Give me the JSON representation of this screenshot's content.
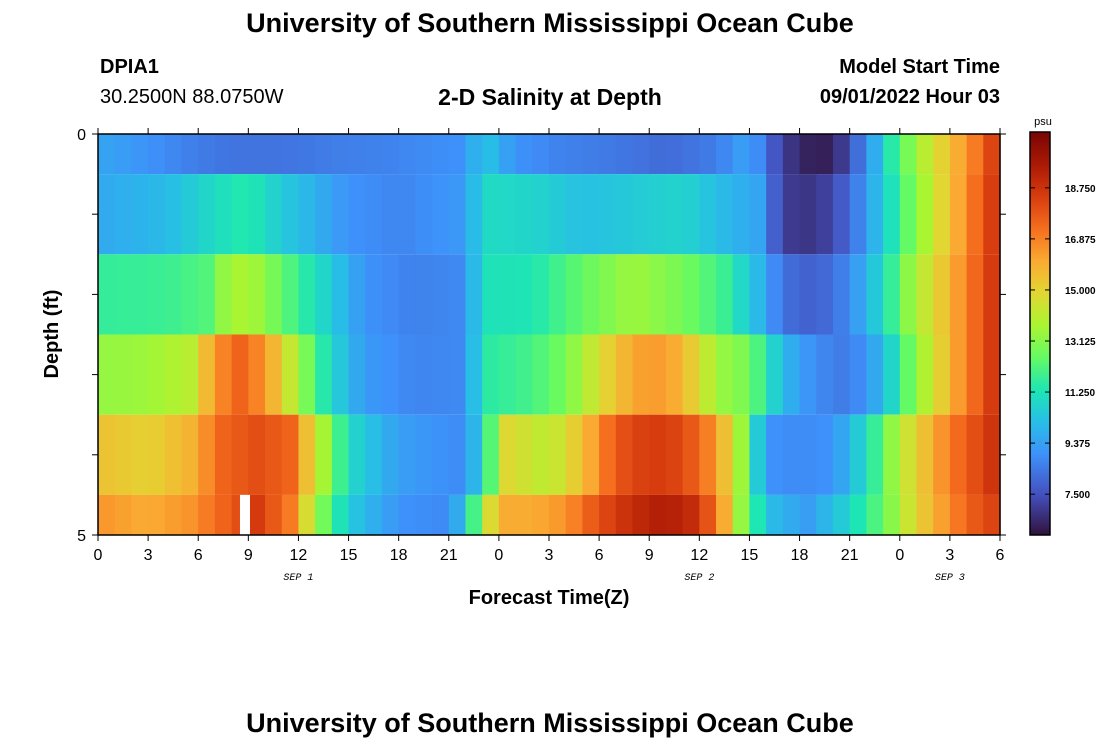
{
  "header": {
    "title": "University of Southern Mississippi Ocean Cube",
    "station": "DPIA1",
    "coords": "30.2500N  88.0750W",
    "subtitle": "2-D Salinity at Depth",
    "start_label": "Model Start Time",
    "start_value": "09/01/2022 Hour 03"
  },
  "footer": {
    "title": "University of Southern Mississippi Ocean Cube"
  },
  "chart_data": {
    "type": "heatmap",
    "title": "2-D Salinity at Depth",
    "xlabel": "Forecast Time(Z)",
    "ylabel": "Depth (ft)",
    "x_range_hours": [
      0,
      54
    ],
    "y_range": [
      0,
      5
    ],
    "y_tick_labels": [
      "0",
      "5"
    ],
    "x_tick_labels": [
      "0",
      "3",
      "6",
      "9",
      "12",
      "15",
      "18",
      "21",
      "0",
      "3",
      "6",
      "9",
      "12",
      "15",
      "18",
      "21",
      "0",
      "3",
      "6"
    ],
    "date_labels": [
      {
        "text": "SEP 1",
        "hour": 12
      },
      {
        "text": "SEP 2",
        "hour": 36
      },
      {
        "text": "SEP 3",
        "hour": 51
      }
    ],
    "colorbar": {
      "unit": "psu",
      "range": [
        6.0,
        20.8
      ],
      "tick_labels": [
        "7.500",
        "9.375",
        "11.250",
        "13.125",
        "15.000",
        "16.875",
        "18.750"
      ],
      "tick_values": [
        7.5,
        9.375,
        11.25,
        13.125,
        15.0,
        16.875,
        18.75
      ]
    },
    "layers": [
      {
        "depth_top": 0,
        "depth_bottom": 0.5,
        "hours": [
          0,
          3,
          6,
          8,
          11,
          14,
          18,
          22,
          23,
          25,
          28,
          31,
          34,
          37,
          39,
          41,
          42.5,
          44,
          46,
          47.5,
          49,
          51,
          53,
          54
        ],
        "values": [
          9.5,
          9.0,
          8.5,
          8.3,
          8.3,
          8.5,
          8.7,
          9.0,
          10.5,
          9.0,
          8.6,
          8.4,
          8.1,
          8.5,
          9.5,
          7.0,
          6.4,
          6.3,
          8.8,
          11.5,
          13.5,
          15.5,
          17.5,
          19.0
        ]
      },
      {
        "depth_top": 0.5,
        "depth_bottom": 1.5,
        "hours": [
          0,
          4,
          7,
          9,
          11,
          13,
          15,
          18,
          22,
          23,
          26,
          29,
          32,
          35,
          37.5,
          39.5,
          41,
          43,
          45,
          47,
          48.5,
          51,
          54
        ],
        "values": [
          9.6,
          10.0,
          11.0,
          11.5,
          10.5,
          9.8,
          9.0,
          8.7,
          9.2,
          11.0,
          10.8,
          10.2,
          10.5,
          10.8,
          10.0,
          9.5,
          7.0,
          6.8,
          8.0,
          10.5,
          12.5,
          15.5,
          19.0
        ]
      },
      {
        "depth_top": 1.5,
        "depth_bottom": 2.5,
        "hours": [
          0,
          4,
          6.5,
          8,
          9.5,
          12,
          14,
          16,
          19,
          22,
          23,
          26,
          29,
          32,
          35,
          37.5,
          39.5,
          41,
          43,
          45,
          47,
          48.5,
          51,
          54
        ],
        "values": [
          11.7,
          11.8,
          12.2,
          13.8,
          13.5,
          11.8,
          10.5,
          9.0,
          8.6,
          8.8,
          11.2,
          11.3,
          12.5,
          13.5,
          12.8,
          11.8,
          10.0,
          8.2,
          7.8,
          8.8,
          11.0,
          13.2,
          15.8,
          19.0
        ]
      },
      {
        "depth_top": 2.5,
        "depth_bottom": 3.5,
        "hours": [
          0,
          3,
          5.5,
          7,
          8.5,
          10,
          12,
          14,
          16,
          19,
          22,
          23,
          26,
          28,
          31,
          33,
          35,
          37,
          39,
          41,
          43,
          45,
          47,
          48.5,
          51,
          54
        ],
        "values": [
          13.3,
          13.5,
          14.0,
          16.5,
          17.5,
          16.5,
          13.5,
          10.8,
          9.2,
          8.7,
          8.8,
          11.5,
          12.0,
          12.8,
          15.5,
          16.5,
          15.8,
          13.5,
          12.8,
          10.0,
          8.8,
          8.4,
          10.0,
          12.5,
          15.8,
          19.0
        ]
      },
      {
        "depth_top": 3.5,
        "depth_bottom": 4.5,
        "hours": [
          0,
          3,
          5.5,
          7.5,
          9.5,
          11.5,
          13,
          15,
          18,
          22,
          23,
          24.5,
          27,
          29,
          31,
          33,
          35,
          37,
          38.5,
          40,
          42,
          44,
          46,
          48,
          51,
          54
        ],
        "values": [
          15.5,
          15.0,
          15.8,
          17.5,
          18.0,
          17.5,
          14.5,
          11.0,
          9.3,
          8.8,
          11.0,
          14.8,
          14.0,
          15.5,
          17.8,
          18.5,
          18.2,
          16.5,
          13.5,
          9.0,
          8.8,
          9.0,
          11.0,
          14.0,
          17.0,
          19.0
        ]
      },
      {
        "depth_top": 4.5,
        "depth_bottom": 5.0,
        "hours": [
          0,
          3,
          5.5,
          7.5,
          9.5,
          11.5,
          13,
          15,
          18,
          21,
          22,
          23,
          24,
          26,
          28,
          30,
          32,
          34,
          36,
          37.5,
          39,
          40.5,
          42.5,
          44.5,
          47,
          49,
          52,
          54
        ],
        "values": [
          16.5,
          16.0,
          16.5,
          17.5,
          18.5,
          17.0,
          13.5,
          10.5,
          9.0,
          8.8,
          10.5,
          13.5,
          16.0,
          16.0,
          16.5,
          18.0,
          19.0,
          19.5,
          18.8,
          16.0,
          12.0,
          10.0,
          9.3,
          10.5,
          12.5,
          15.0,
          17.5,
          18.5
        ]
      }
    ],
    "missing_cells": [
      {
        "hour": 8.5,
        "depth_top": 4.5,
        "depth_bottom": 5.0
      }
    ]
  }
}
